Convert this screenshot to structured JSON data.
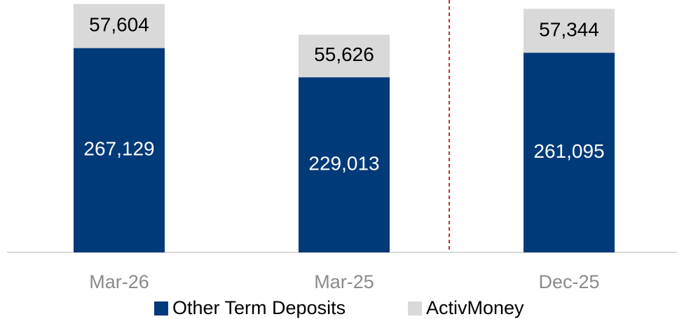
{
  "chart_data": {
    "type": "stacked_bar",
    "categories": [
      "Mar-26",
      "Mar-25",
      "Dec-25"
    ],
    "series": [
      {
        "name": "Other Term Deposits",
        "color": "#003a78",
        "values": [
          267129,
          229013,
          261095
        ],
        "value_labels": [
          "267,129",
          "229,013",
          "261,095"
        ]
      },
      {
        "name": "ActivMoney",
        "color": "#d9d9d9",
        "values": [
          57604,
          55626,
          57344
        ],
        "value_labels": [
          "57,604",
          "55,626",
          "57,344"
        ]
      }
    ],
    "ylim": [
      0,
      330000
    ],
    "legend": "bottom"
  }
}
